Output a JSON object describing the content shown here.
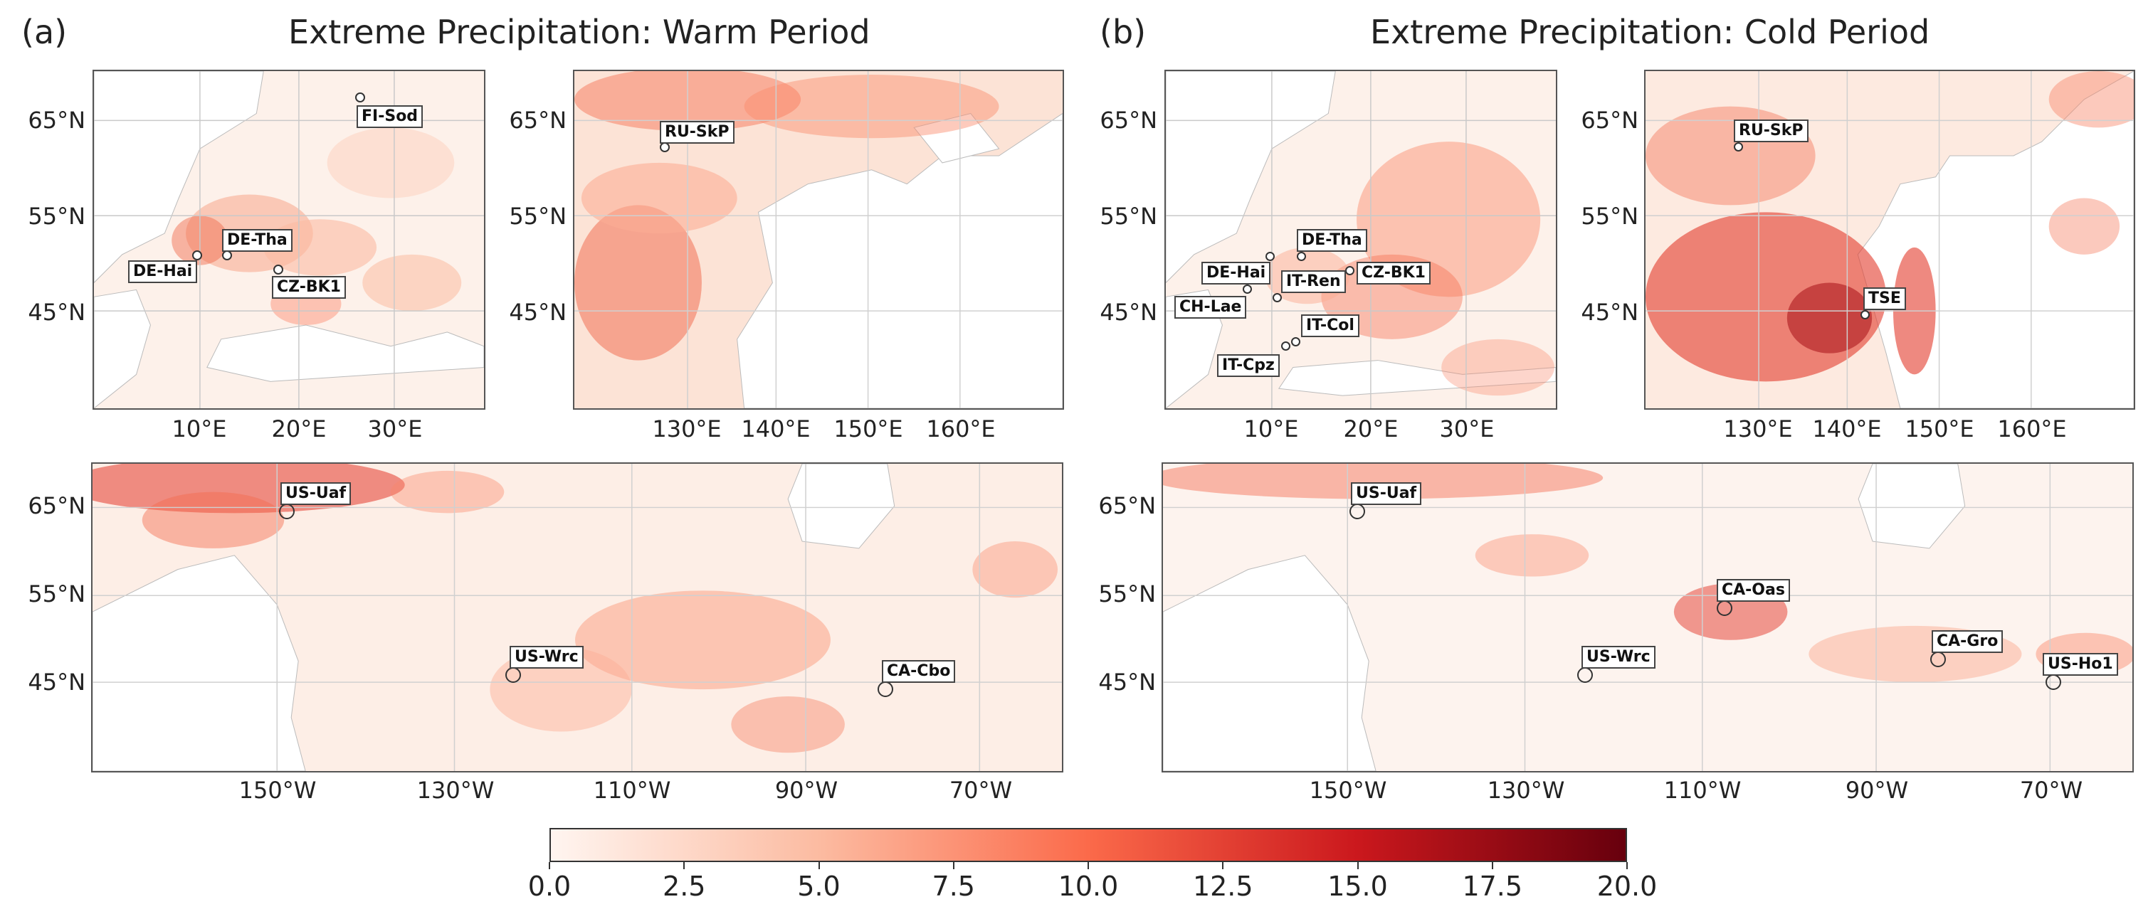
{
  "panels": {
    "a": {
      "letter": "(a)",
      "title": "Extreme Precipitation: Warm Period",
      "europe": {
        "lat_ticks": [
          "65°N",
          "55°N",
          "45°N"
        ],
        "lon_ticks": [
          "10°E",
          "20°E",
          "30°E"
        ],
        "sites": [
          "FI-Sod",
          "DE-Tha",
          "DE-Hai",
          "CZ-BK1"
        ]
      },
      "asia": {
        "lat_ticks": [
          "65°N",
          "55°N",
          "45°N"
        ],
        "lon_ticks": [
          "130°E",
          "140°E",
          "150°E",
          "160°E"
        ],
        "sites": [
          "RU-SkP"
        ]
      },
      "america": {
        "lat_ticks": [
          "65°N",
          "55°N",
          "45°N"
        ],
        "lon_ticks": [
          "150°W",
          "130°W",
          "110°W",
          "90°W",
          "70°W"
        ],
        "sites": [
          "US-Uaf",
          "US-Wrc",
          "CA-Cbo"
        ]
      }
    },
    "b": {
      "letter": "(b)",
      "title": "Extreme Precipitation: Cold Period",
      "europe": {
        "lat_ticks": [
          "65°N",
          "55°N",
          "45°N"
        ],
        "lon_ticks": [
          "10°E",
          "20°E",
          "30°E"
        ],
        "sites": [
          "DE-Tha",
          "DE-Hai",
          "CZ-BK1",
          "IT-Ren",
          "CH-Lae",
          "IT-Col",
          "IT-Cpz"
        ]
      },
      "asia": {
        "lat_ticks": [
          "65°N",
          "55°N",
          "45°N"
        ],
        "lon_ticks": [
          "130°E",
          "140°E",
          "150°E",
          "160°E"
        ],
        "sites": [
          "RU-SkP",
          "TSE"
        ]
      },
      "america": {
        "lat_ticks": [
          "65°N",
          "55°N",
          "45°N"
        ],
        "lon_ticks": [
          "150°W",
          "130°W",
          "110°W",
          "90°W",
          "70°W"
        ],
        "sites": [
          "US-Uaf",
          "CA-Oas",
          "CA-Gro",
          "US-Wrc",
          "US-Ho1"
        ]
      }
    }
  },
  "colorbar": {
    "min": 0.0,
    "max": 20.0,
    "ticks": [
      "0.0",
      "2.5",
      "5.0",
      "7.5",
      "10.0",
      "12.5",
      "15.0",
      "17.5",
      "20.0"
    ],
    "colors": [
      "#fff5f0",
      "#fcbba1",
      "#fb6a4a",
      "#cb181d",
      "#67000d"
    ]
  }
}
